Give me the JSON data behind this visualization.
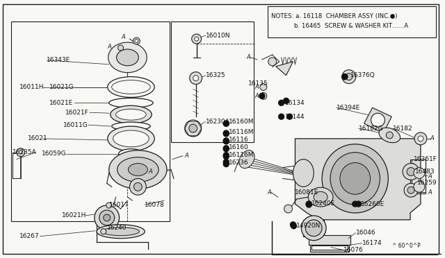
{
  "bg": "#f8f8f4",
  "lc": "#1a1a1a",
  "tc": "#111111",
  "notes_line1": "NOTES: a. 16118  CHAMBER ASSY (INC.●)",
  "notes_line2": "            b. 16465  SCREW & WASHER KIT……A",
  "bottom_right": "^ 60^0^P",
  "fig_w": 6.4,
  "fig_h": 3.72
}
